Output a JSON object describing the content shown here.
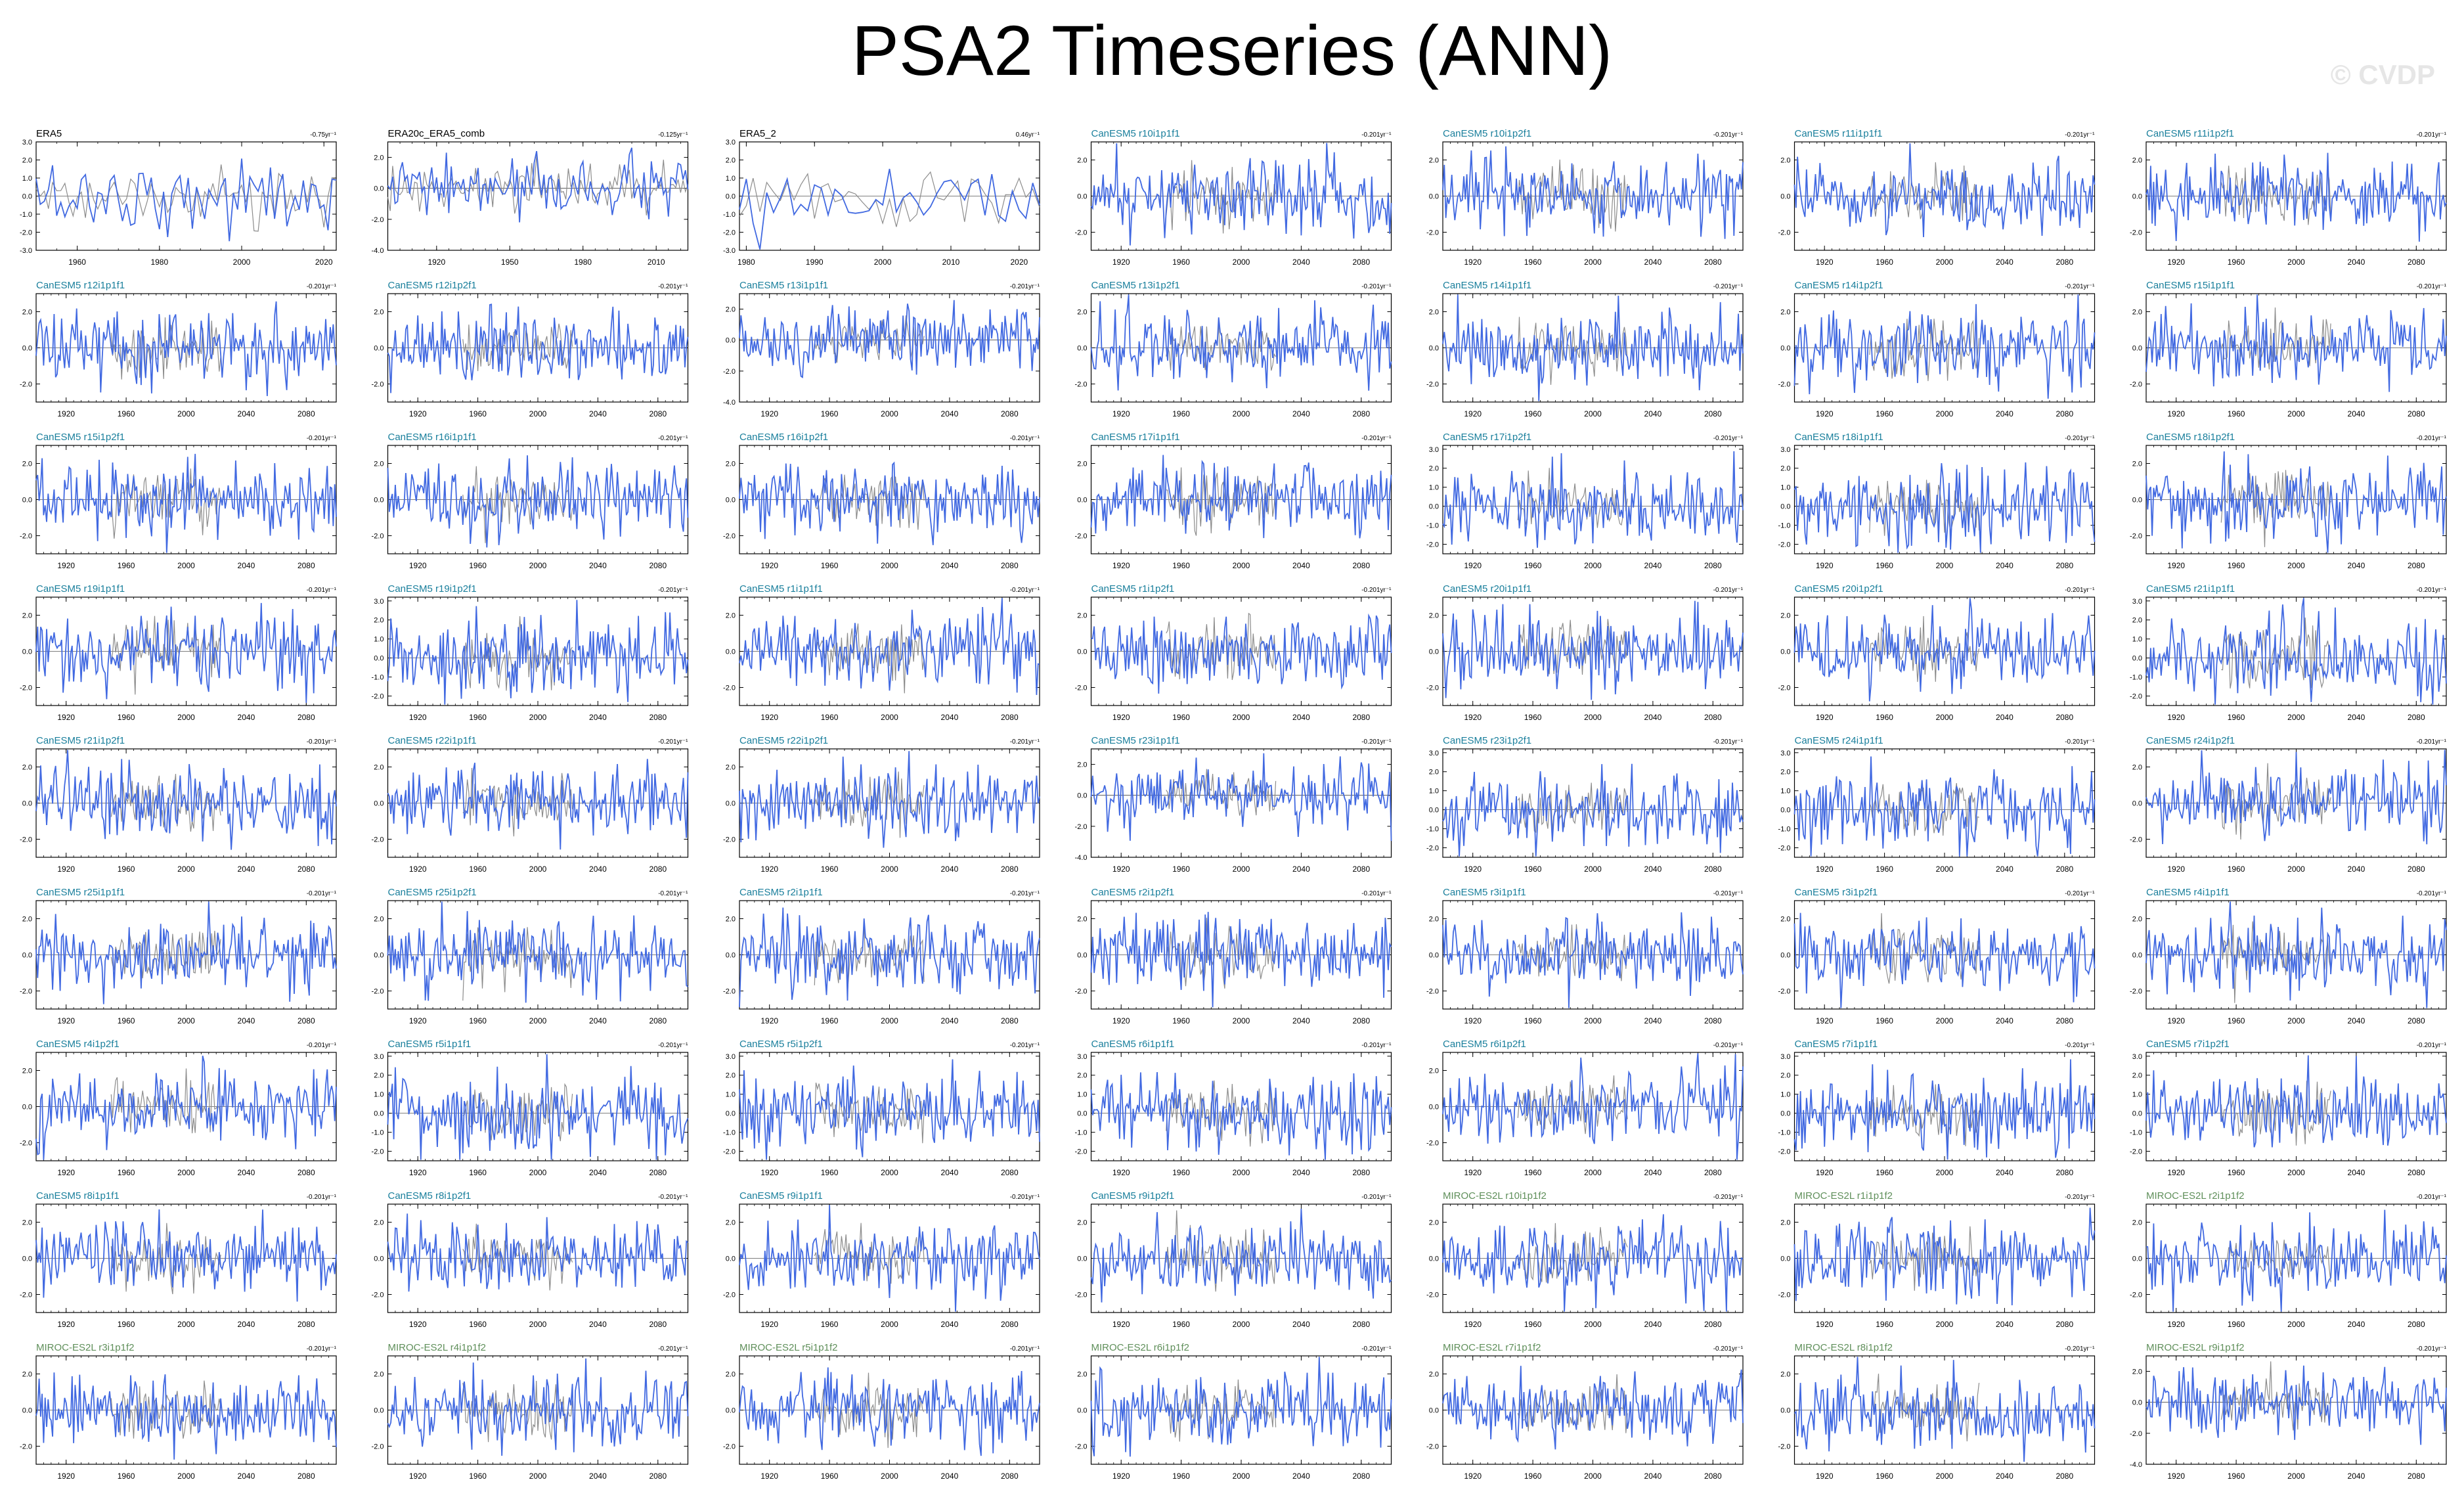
{
  "title": "PSA2 Timeseries (ANN)",
  "watermark": "© CVDP",
  "colors": {
    "line": "#4169E1",
    "ensemble": "#8c8c8c",
    "title_obs": "#000000",
    "title_canesm": "#1a7f9c",
    "title_miroc": "#5f8f5a",
    "axis": "#000000",
    "zero_line": "#000000"
  },
  "chart_data": {
    "type": "line",
    "description_of_series": "annual PSA2 index timeseries; blue = member, grey = observational/ensemble reference",
    "panels": [
      {
        "label": "ERA5",
        "trend": "-0.75yr⁻¹",
        "group": "obs",
        "xlim": [
          1950,
          2023
        ],
        "xticks": [
          "1960",
          "1980",
          "2000",
          "2020"
        ],
        "yticks": [
          "3.0",
          "2.0",
          "1.0",
          "0.0",
          "-1.0",
          "-2.0",
          "-3.0"
        ],
        "ylim": [
          -3,
          3
        ]
      },
      {
        "label": "ERA20c_ERA5_comb",
        "trend": "-0.125yr⁻¹",
        "group": "obs",
        "xlim": [
          1900,
          2023
        ],
        "xticks": [
          "1920",
          "1950",
          "1980",
          "2010"
        ],
        "yticks": [
          "2.0",
          "0.0",
          "-2.0",
          "-4.0"
        ],
        "ylim": [
          -4,
          3
        ]
      },
      {
        "label": "ERA5_2",
        "trend": "0.46yr⁻¹",
        "group": "obs",
        "xlim": [
          1979,
          2023
        ],
        "xticks": [
          "1980",
          "1990",
          "2000",
          "2010",
          "2020"
        ],
        "yticks": [
          "3.0",
          "2.0",
          "1.0",
          "0.0",
          "-1.0",
          "-2.0",
          "-3.0"
        ],
        "ylim": [
          -3,
          3
        ]
      },
      {
        "label": "CanESM5 r10i1p1f1",
        "trend": "-0.201yr⁻¹",
        "group": "canesm",
        "yticks": [
          "2.0",
          "0.0",
          "-2.0"
        ],
        "ylim": [
          -3,
          3
        ]
      },
      {
        "label": "CanESM5 r10i1p2f1",
        "trend": "-0.201yr⁻¹",
        "group": "canesm",
        "yticks": [
          "2.0",
          "0.0",
          "-2.0"
        ],
        "ylim": [
          -3,
          3
        ]
      },
      {
        "label": "CanESM5 r11i1p1f1",
        "trend": "-0.201yr⁻¹",
        "group": "canesm",
        "yticks": [
          "2.0",
          "0.0",
          "-2.0"
        ],
        "ylim": [
          -3,
          3
        ]
      },
      {
        "label": "CanESM5 r11i1p2f1",
        "trend": "-0.201yr⁻¹",
        "group": "canesm",
        "yticks": [
          "2.0",
          "0.0",
          "-2.0"
        ],
        "ylim": [
          -3,
          3
        ]
      },
      {
        "label": "CanESM5 r12i1p1f1",
        "trend": "-0.201yr⁻¹",
        "group": "canesm",
        "yticks": [
          "2.0",
          "0.0",
          "-2.0"
        ],
        "ylim": [
          -3,
          3
        ]
      },
      {
        "label": "CanESM5 r12i1p2f1",
        "trend": "-0.201yr⁻¹",
        "group": "canesm",
        "yticks": [
          "2.0",
          "0.0",
          "-2.0"
        ],
        "ylim": [
          -3,
          3
        ]
      },
      {
        "label": "CanESM5 r13i1p1f1",
        "trend": "-0.201yr⁻¹",
        "group": "canesm",
        "yticks": [
          "2.0",
          "0.0",
          "-2.0",
          "-4.0"
        ],
        "ylim": [
          -4,
          3
        ]
      },
      {
        "label": "CanESM5 r13i1p2f1",
        "trend": "-0.201yr⁻¹",
        "group": "canesm",
        "yticks": [
          "2.0",
          "0.0",
          "-2.0"
        ],
        "ylim": [
          -3,
          3
        ]
      },
      {
        "label": "CanESM5 r14i1p1f1",
        "trend": "-0.201yr⁻¹",
        "group": "canesm",
        "yticks": [
          "2.0",
          "0.0",
          "-2.0"
        ],
        "ylim": [
          -3,
          3
        ]
      },
      {
        "label": "CanESM5 r14i1p2f1",
        "trend": "-0.201yr⁻¹",
        "group": "canesm",
        "yticks": [
          "2.0",
          "0.0",
          "-2.0"
        ],
        "ylim": [
          -3,
          3
        ]
      },
      {
        "label": "CanESM5 r15i1p1f1",
        "trend": "-0.201yr⁻¹",
        "group": "canesm",
        "yticks": [
          "2.0",
          "0.0",
          "-2.0"
        ],
        "ylim": [
          -3,
          3
        ]
      },
      {
        "label": "CanESM5 r15i1p2f1",
        "trend": "-0.201yr⁻¹",
        "group": "canesm",
        "yticks": [
          "2.0",
          "0.0",
          "-2.0"
        ],
        "ylim": [
          -3,
          3
        ]
      },
      {
        "label": "CanESM5 r16i1p1f1",
        "trend": "-0.201yr⁻¹",
        "group": "canesm",
        "yticks": [
          "2.0",
          "0.0",
          "-2.0"
        ],
        "ylim": [
          -3,
          3
        ]
      },
      {
        "label": "CanESM5 r16i1p2f1",
        "trend": "-0.201yr⁻¹",
        "group": "canesm",
        "yticks": [
          "2.0",
          "0.0",
          "-2.0"
        ],
        "ylim": [
          -3,
          3
        ]
      },
      {
        "label": "CanESM5 r17i1p1f1",
        "trend": "-0.201yr⁻¹",
        "group": "canesm",
        "yticks": [
          "2.0",
          "0.0",
          "-2.0"
        ],
        "ylim": [
          -3,
          3
        ]
      },
      {
        "label": "CanESM5 r17i1p2f1",
        "trend": "-0.201yr⁻¹",
        "group": "canesm",
        "yticks": [
          "3.0",
          "2.0",
          "1.0",
          "0.0",
          "-1.0",
          "-2.0"
        ],
        "ylim": [
          -2.5,
          3.2
        ]
      },
      {
        "label": "CanESM5 r18i1p1f1",
        "trend": "-0.201yr⁻¹",
        "group": "canesm",
        "yticks": [
          "3.0",
          "2.0",
          "1.0",
          "0.0",
          "-1.0",
          "-2.0"
        ],
        "ylim": [
          -2.5,
          3.2
        ]
      },
      {
        "label": "CanESM5 r18i1p2f1",
        "trend": "-0.201yr⁻¹",
        "group": "canesm",
        "yticks": [
          "2.0",
          "0.0",
          "-2.0"
        ],
        "ylim": [
          -3,
          3
        ]
      },
      {
        "label": "CanESM5 r19i1p1f1",
        "trend": "-0.201yr⁻¹",
        "group": "canesm",
        "yticks": [
          "2.0",
          "0.0",
          "-2.0"
        ],
        "ylim": [
          -3,
          3
        ]
      },
      {
        "label": "CanESM5 r19i1p2f1",
        "trend": "-0.201yr⁻¹",
        "group": "canesm",
        "yticks": [
          "3.0",
          "2.0",
          "1.0",
          "0.0",
          "-1.0",
          "-2.0"
        ],
        "ylim": [
          -2.5,
          3.2
        ]
      },
      {
        "label": "CanESM5 r1i1p1f1",
        "trend": "-0.201yr⁻¹",
        "group": "canesm",
        "yticks": [
          "2.0",
          "0.0",
          "-2.0"
        ],
        "ylim": [
          -3,
          3
        ]
      },
      {
        "label": "CanESM5 r1i1p2f1",
        "trend": "-0.201yr⁻¹",
        "group": "canesm",
        "yticks": [
          "2.0",
          "0.0",
          "-2.0"
        ],
        "ylim": [
          -3,
          3
        ]
      },
      {
        "label": "CanESM5 r20i1p1f1",
        "trend": "-0.201yr⁻¹",
        "group": "canesm",
        "yticks": [
          "2.0",
          "0.0",
          "-2.0"
        ],
        "ylim": [
          -3,
          3
        ]
      },
      {
        "label": "CanESM5 r20i1p2f1",
        "trend": "-0.201yr⁻¹",
        "group": "canesm",
        "yticks": [
          "2.0",
          "0.0",
          "-2.0"
        ],
        "ylim": [
          -3,
          3
        ]
      },
      {
        "label": "CanESM5 r21i1p1f1",
        "trend": "-0.201yr⁻¹",
        "group": "canesm",
        "yticks": [
          "3.0",
          "2.0",
          "1.0",
          "0.0",
          "-1.0",
          "-2.0"
        ],
        "ylim": [
          -2.5,
          3.2
        ]
      },
      {
        "label": "CanESM5 r21i1p2f1",
        "trend": "-0.201yr⁻¹",
        "group": "canesm",
        "yticks": [
          "2.0",
          "0.0",
          "-2.0"
        ],
        "ylim": [
          -3,
          3
        ]
      },
      {
        "label": "CanESM5 r22i1p1f1",
        "trend": "-0.201yr⁻¹",
        "group": "canesm",
        "yticks": [
          "2.0",
          "0.0",
          "-2.0"
        ],
        "ylim": [
          -3,
          3
        ]
      },
      {
        "label": "CanESM5 r22i1p2f1",
        "trend": "-0.201yr⁻¹",
        "group": "canesm",
        "yticks": [
          "2.0",
          "0.0",
          "-2.0"
        ],
        "ylim": [
          -3,
          3
        ]
      },
      {
        "label": "CanESM5 r23i1p1f1",
        "trend": "-0.201yr⁻¹",
        "group": "canesm",
        "yticks": [
          "2.0",
          "0.0",
          "-2.0",
          "-4.0"
        ],
        "ylim": [
          -4,
          3
        ]
      },
      {
        "label": "CanESM5 r23i1p2f1",
        "trend": "-0.201yr⁻¹",
        "group": "canesm",
        "yticks": [
          "3.0",
          "2.0",
          "1.0",
          "0.0",
          "-1.0",
          "-2.0"
        ],
        "ylim": [
          -2.5,
          3.2
        ]
      },
      {
        "label": "CanESM5 r24i1p1f1",
        "trend": "-0.201yr⁻¹",
        "group": "canesm",
        "yticks": [
          "3.0",
          "2.0",
          "1.0",
          "0.0",
          "-1.0",
          "-2.0"
        ],
        "ylim": [
          -2.5,
          3.2
        ]
      },
      {
        "label": "CanESM5 r24i1p2f1",
        "trend": "-0.201yr⁻¹",
        "group": "canesm",
        "yticks": [
          "2.0",
          "0.0",
          "-2.0"
        ],
        "ylim": [
          -3,
          3
        ]
      },
      {
        "label": "CanESM5 r25i1p1f1",
        "trend": "-0.201yr⁻¹",
        "group": "canesm",
        "yticks": [
          "2.0",
          "0.0",
          "-2.0"
        ],
        "ylim": [
          -3,
          3
        ]
      },
      {
        "label": "CanESM5 r25i1p2f1",
        "trend": "-0.201yr⁻¹",
        "group": "canesm",
        "yticks": [
          "2.0",
          "0.0",
          "-2.0"
        ],
        "ylim": [
          -3,
          3
        ]
      },
      {
        "label": "CanESM5 r2i1p1f1",
        "trend": "-0.201yr⁻¹",
        "group": "canesm",
        "yticks": [
          "2.0",
          "0.0",
          "-2.0"
        ],
        "ylim": [
          -3,
          3
        ]
      },
      {
        "label": "CanESM5 r2i1p2f1",
        "trend": "-0.201yr⁻¹",
        "group": "canesm",
        "yticks": [
          "2.0",
          "0.0",
          "-2.0"
        ],
        "ylim": [
          -3,
          3
        ]
      },
      {
        "label": "CanESM5 r3i1p1f1",
        "trend": "-0.201yr⁻¹",
        "group": "canesm",
        "yticks": [
          "2.0",
          "0.0",
          "-2.0"
        ],
        "ylim": [
          -3,
          3
        ]
      },
      {
        "label": "CanESM5 r3i1p2f1",
        "trend": "-0.201yr⁻¹",
        "group": "canesm",
        "yticks": [
          "2.0",
          "0.0",
          "-2.0"
        ],
        "ylim": [
          -3,
          3
        ]
      },
      {
        "label": "CanESM5 r4i1p1f1",
        "trend": "-0.201yr⁻¹",
        "group": "canesm",
        "yticks": [
          "2.0",
          "0.0",
          "-2.0"
        ],
        "ylim": [
          -3,
          3
        ]
      },
      {
        "label": "CanESM5 r4i1p2f1",
        "trend": "-0.201yr⁻¹",
        "group": "canesm",
        "yticks": [
          "2.0",
          "0.0",
          "-2.0"
        ],
        "ylim": [
          -3,
          3
        ]
      },
      {
        "label": "CanESM5 r5i1p1f1",
        "trend": "-0.201yr⁻¹",
        "group": "canesm",
        "yticks": [
          "3.0",
          "2.0",
          "1.0",
          "0.0",
          "-1.0",
          "-2.0"
        ],
        "ylim": [
          -2.5,
          3.2
        ]
      },
      {
        "label": "CanESM5 r5i1p2f1",
        "trend": "-0.201yr⁻¹",
        "group": "canesm",
        "yticks": [
          "3.0",
          "2.0",
          "1.0",
          "0.0",
          "-1.0",
          "-2.0"
        ],
        "ylim": [
          -2.5,
          3.2
        ]
      },
      {
        "label": "CanESM5 r6i1p1f1",
        "trend": "-0.201yr⁻¹",
        "group": "canesm",
        "yticks": [
          "3.0",
          "2.0",
          "1.0",
          "0.0",
          "-1.0",
          "-2.0"
        ],
        "ylim": [
          -2.5,
          3.2
        ]
      },
      {
        "label": "CanESM5 r6i1p2f1",
        "trend": "-0.201yr⁻¹",
        "group": "canesm",
        "yticks": [
          "2.0",
          "0.0",
          "-2.0"
        ],
        "ylim": [
          -3,
          3
        ]
      },
      {
        "label": "CanESM5 r7i1p1f1",
        "trend": "-0.201yr⁻¹",
        "group": "canesm",
        "yticks": [
          "3.0",
          "2.0",
          "1.0",
          "0.0",
          "-1.0",
          "-2.0"
        ],
        "ylim": [
          -2.5,
          3.2
        ]
      },
      {
        "label": "CanESM5 r7i1p2f1",
        "trend": "-0.201yr⁻¹",
        "group": "canesm",
        "yticks": [
          "3.0",
          "2.0",
          "1.0",
          "0.0",
          "-1.0",
          "-2.0"
        ],
        "ylim": [
          -2.5,
          3.2
        ]
      },
      {
        "label": "CanESM5 r8i1p1f1",
        "trend": "-0.201yr⁻¹",
        "group": "canesm",
        "yticks": [
          "2.0",
          "0.0",
          "-2.0"
        ],
        "ylim": [
          -3,
          3
        ]
      },
      {
        "label": "CanESM5 r8i1p2f1",
        "trend": "-0.201yr⁻¹",
        "group": "canesm",
        "yticks": [
          "2.0",
          "0.0",
          "-2.0"
        ],
        "ylim": [
          -3,
          3
        ]
      },
      {
        "label": "CanESM5 r9i1p1f1",
        "trend": "-0.201yr⁻¹",
        "group": "canesm",
        "yticks": [
          "2.0",
          "0.0",
          "-2.0"
        ],
        "ylim": [
          -3,
          3
        ]
      },
      {
        "label": "CanESM5 r9i1p2f1",
        "trend": "-0.201yr⁻¹",
        "group": "canesm",
        "yticks": [
          "2.0",
          "0.0",
          "-2.0"
        ],
        "ylim": [
          -3,
          3
        ]
      },
      {
        "label": "MIROC-ES2L r10i1p1f2",
        "trend": "-0.201yr⁻¹",
        "group": "miroc",
        "yticks": [
          "2.0",
          "0.0",
          "-2.0"
        ],
        "ylim": [
          -3,
          3
        ]
      },
      {
        "label": "MIROC-ES2L r1i1p1f2",
        "trend": "-0.201yr⁻¹",
        "group": "miroc",
        "yticks": [
          "2.0",
          "0.0",
          "-2.0"
        ],
        "ylim": [
          -3,
          3
        ]
      },
      {
        "label": "MIROC-ES2L r2i1p1f2",
        "trend": "-0.201yr⁻¹",
        "group": "miroc",
        "yticks": [
          "2.0",
          "0.0",
          "-2.0"
        ],
        "ylim": [
          -3,
          3
        ]
      },
      {
        "label": "MIROC-ES2L r3i1p1f2",
        "trend": "-0.201yr⁻¹",
        "group": "miroc",
        "yticks": [
          "2.0",
          "0.0",
          "-2.0"
        ],
        "ylim": [
          -3,
          3
        ]
      },
      {
        "label": "MIROC-ES2L r4i1p1f2",
        "trend": "-0.201yr⁻¹",
        "group": "miroc",
        "yticks": [
          "2.0",
          "0.0",
          "-2.0"
        ],
        "ylim": [
          -3,
          3
        ]
      },
      {
        "label": "MIROC-ES2L r5i1p1f2",
        "trend": "-0.201yr⁻¹",
        "group": "miroc",
        "yticks": [
          "2.0",
          "0.0",
          "-2.0"
        ],
        "ylim": [
          -3,
          3
        ]
      },
      {
        "label": "MIROC-ES2L r6i1p1f2",
        "trend": "-0.201yr⁻¹",
        "group": "miroc",
        "yticks": [
          "2.0",
          "0.0",
          "-2.0"
        ],
        "ylim": [
          -3,
          3
        ]
      },
      {
        "label": "MIROC-ES2L r7i1p1f2",
        "trend": "-0.201yr⁻¹",
        "group": "miroc",
        "yticks": [
          "2.0",
          "0.0",
          "-2.0"
        ],
        "ylim": [
          -3,
          3
        ]
      },
      {
        "label": "MIROC-ES2L r8i1p1f2",
        "trend": "-0.201yr⁻¹",
        "group": "miroc",
        "yticks": [
          "2.0",
          "0.0",
          "-2.0"
        ],
        "ylim": [
          -3,
          3
        ]
      },
      {
        "label": "MIROC-ES2L r9i1p1f2",
        "trend": "-0.201yr⁻¹",
        "group": "miroc",
        "yticks": [
          "2.0",
          "0.0",
          "-2.0",
          "-4.0"
        ],
        "ylim": [
          -4,
          3
        ]
      }
    ],
    "model_xlim": [
      1900,
      2100
    ],
    "model_xticks": [
      "1920",
      "1960",
      "2000",
      "2040",
      "2080"
    ]
  }
}
